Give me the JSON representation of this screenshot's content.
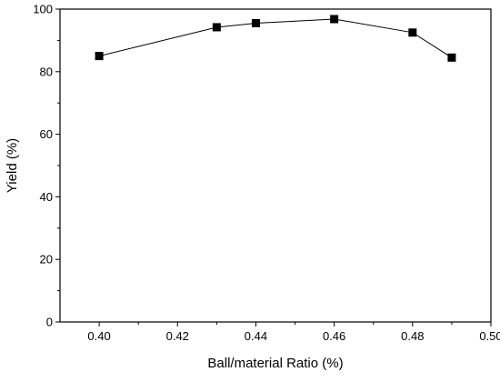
{
  "chart_data": {
    "type": "line",
    "title": "",
    "xlabel": "Ball/material Ratio (%)",
    "ylabel": "Yield (%)",
    "xlim": [
      0.39,
      0.5
    ],
    "ylim": [
      0,
      100
    ],
    "x_ticks": [
      0.4,
      0.42,
      0.44,
      0.46,
      0.48,
      0.5
    ],
    "x_tick_labels": [
      "0.40",
      "0.42",
      "0.44",
      "0.46",
      "0.48",
      "0.50"
    ],
    "y_ticks": [
      0,
      20,
      40,
      60,
      80,
      100
    ],
    "y_tick_labels": [
      "0",
      "20",
      "40",
      "60",
      "80",
      "100"
    ],
    "grid": false,
    "legend": "none",
    "marker": "square",
    "colors": {
      "line": "#000000",
      "marker": "#000000",
      "axis": "#000000"
    },
    "series": [
      {
        "x": [
          0.4,
          0.43,
          0.44,
          0.46,
          0.48,
          0.49
        ],
        "y": [
          85,
          94.2,
          95.5,
          96.8,
          92.5,
          84.5
        ]
      }
    ]
  }
}
